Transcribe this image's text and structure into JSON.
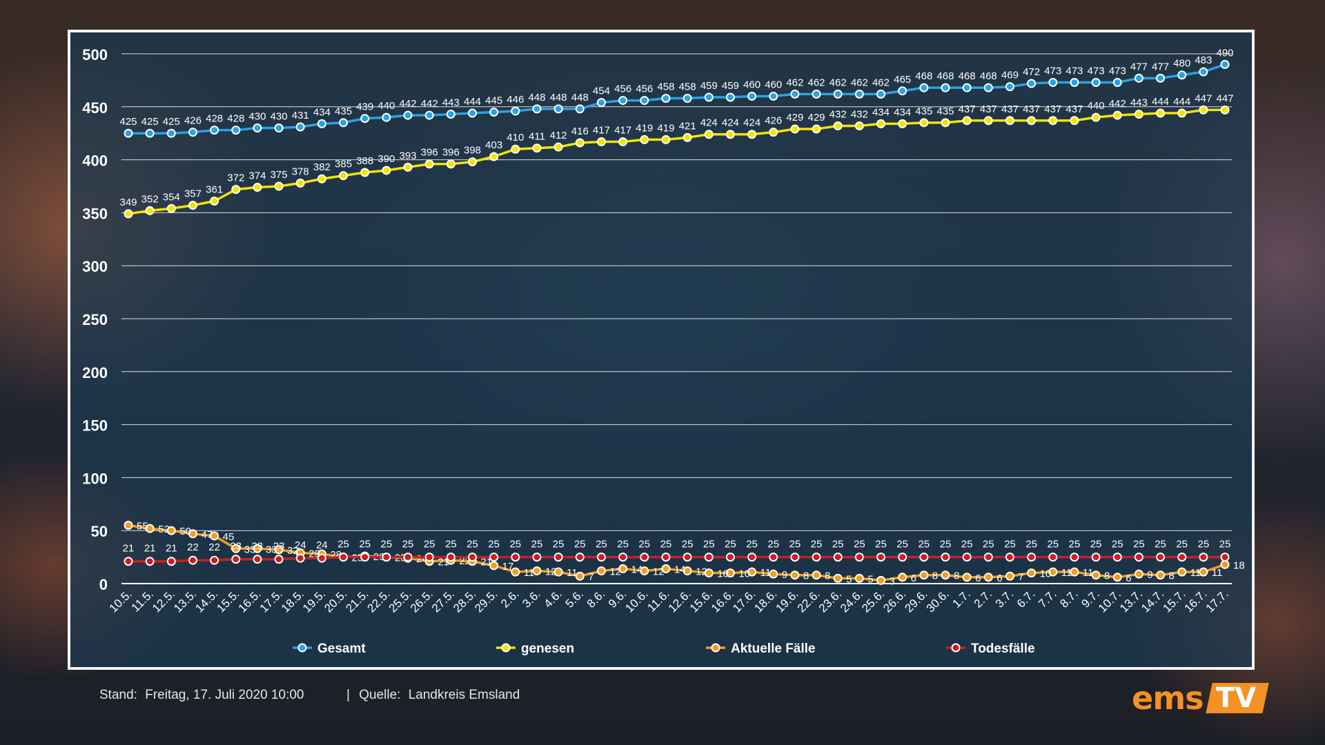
{
  "chart_data": {
    "type": "line",
    "title": "",
    "xlabel": "",
    "ylabel": "",
    "ylim": [
      0,
      500
    ],
    "yticks": [
      0,
      50,
      100,
      150,
      200,
      250,
      300,
      350,
      400,
      450,
      500
    ],
    "grid": true,
    "legend_position": "bottom",
    "categories": [
      "10.5.",
      "11.5.",
      "12.5.",
      "13.5.",
      "14.5.",
      "15.5.",
      "16.5.",
      "17.5.",
      "18.5.",
      "19.5.",
      "20.5.",
      "21.5.",
      "22.5.",
      "25.5.",
      "26.5.",
      "27.5.",
      "28.5.",
      "29.5.",
      "2.6.",
      "3.6.",
      "4.6.",
      "5.6.",
      "8.6.",
      "9.6.",
      "10.6.",
      "11.6.",
      "12.6.",
      "15.6.",
      "16.6.",
      "17.6.",
      "18.6.",
      "19.6.",
      "22.6.",
      "23.6.",
      "24.6.",
      "25.6.",
      "26.6.",
      "29.6.",
      "30.6.",
      "1.7.",
      "2.7.",
      "3.7.",
      "6.7.",
      "7.7.",
      "8.7.",
      "9.7.",
      "10.7.",
      "13.7.",
      "14.7.",
      "15.7.",
      "16.7.",
      "17.7."
    ],
    "series": [
      {
        "name": "Gesamt",
        "color": "#29a3e5",
        "values": [
          425,
          425,
          425,
          426,
          428,
          428,
          430,
          430,
          431,
          434,
          435,
          439,
          440,
          442,
          442,
          443,
          444,
          445,
          446,
          448,
          448,
          448,
          454,
          456,
          456,
          458,
          458,
          459,
          459,
          460,
          460,
          462,
          462,
          462,
          462,
          462,
          465,
          468,
          468,
          468,
          468,
          469,
          472,
          473,
          473,
          473,
          473,
          477,
          477,
          480,
          483,
          490
        ]
      },
      {
        "name": "genesen",
        "color": "#f2e600",
        "values": [
          349,
          352,
          354,
          357,
          361,
          372,
          374,
          375,
          378,
          382,
          385,
          388,
          390,
          393,
          396,
          396,
          398,
          403,
          410,
          411,
          412,
          416,
          417,
          417,
          419,
          419,
          421,
          424,
          424,
          424,
          426,
          429,
          429,
          432,
          432,
          434,
          434,
          435,
          435,
          437,
          437,
          437,
          437,
          437,
          437,
          440,
          442,
          443,
          444,
          444,
          447,
          447
        ]
      },
      {
        "name": "Aktuelle Fälle",
        "color": "#f39c1e",
        "values": [
          55,
          52,
          50,
          47,
          45,
          33,
          33,
          32,
          29,
          28,
          25,
          26,
          25,
          24,
          21,
          22,
          21,
          17,
          11,
          12,
          11,
          7,
          12,
          14,
          12,
          14,
          12,
          10,
          10,
          11,
          9,
          8,
          8,
          5,
          5,
          3,
          6,
          8,
          8,
          6,
          6,
          7,
          10,
          11,
          11,
          8,
          6,
          9,
          8,
          11,
          11,
          18
        ]
      },
      {
        "name": "Todesfälle",
        "color": "#c8201e",
        "values": [
          21,
          21,
          21,
          22,
          22,
          23,
          23,
          23,
          24,
          24,
          25,
          25,
          25,
          25,
          25,
          25,
          25,
          25,
          25,
          25,
          25,
          25,
          25,
          25,
          25,
          25,
          25,
          25,
          25,
          25,
          25,
          25,
          25,
          25,
          25,
          25,
          25,
          25,
          25,
          25,
          25,
          25,
          25,
          25,
          25,
          25,
          25,
          25,
          25,
          25,
          25,
          25
        ]
      }
    ]
  },
  "footer": {
    "stand_label": "Stand:",
    "stand_value": "Freitag, 17. Juli 2020 10:00",
    "separator": "|",
    "quelle_label": "Quelle:",
    "quelle_value": "Landkreis Emsland"
  },
  "logo": {
    "part1": "ems",
    "part2": "TV",
    "color": "#f39223"
  }
}
